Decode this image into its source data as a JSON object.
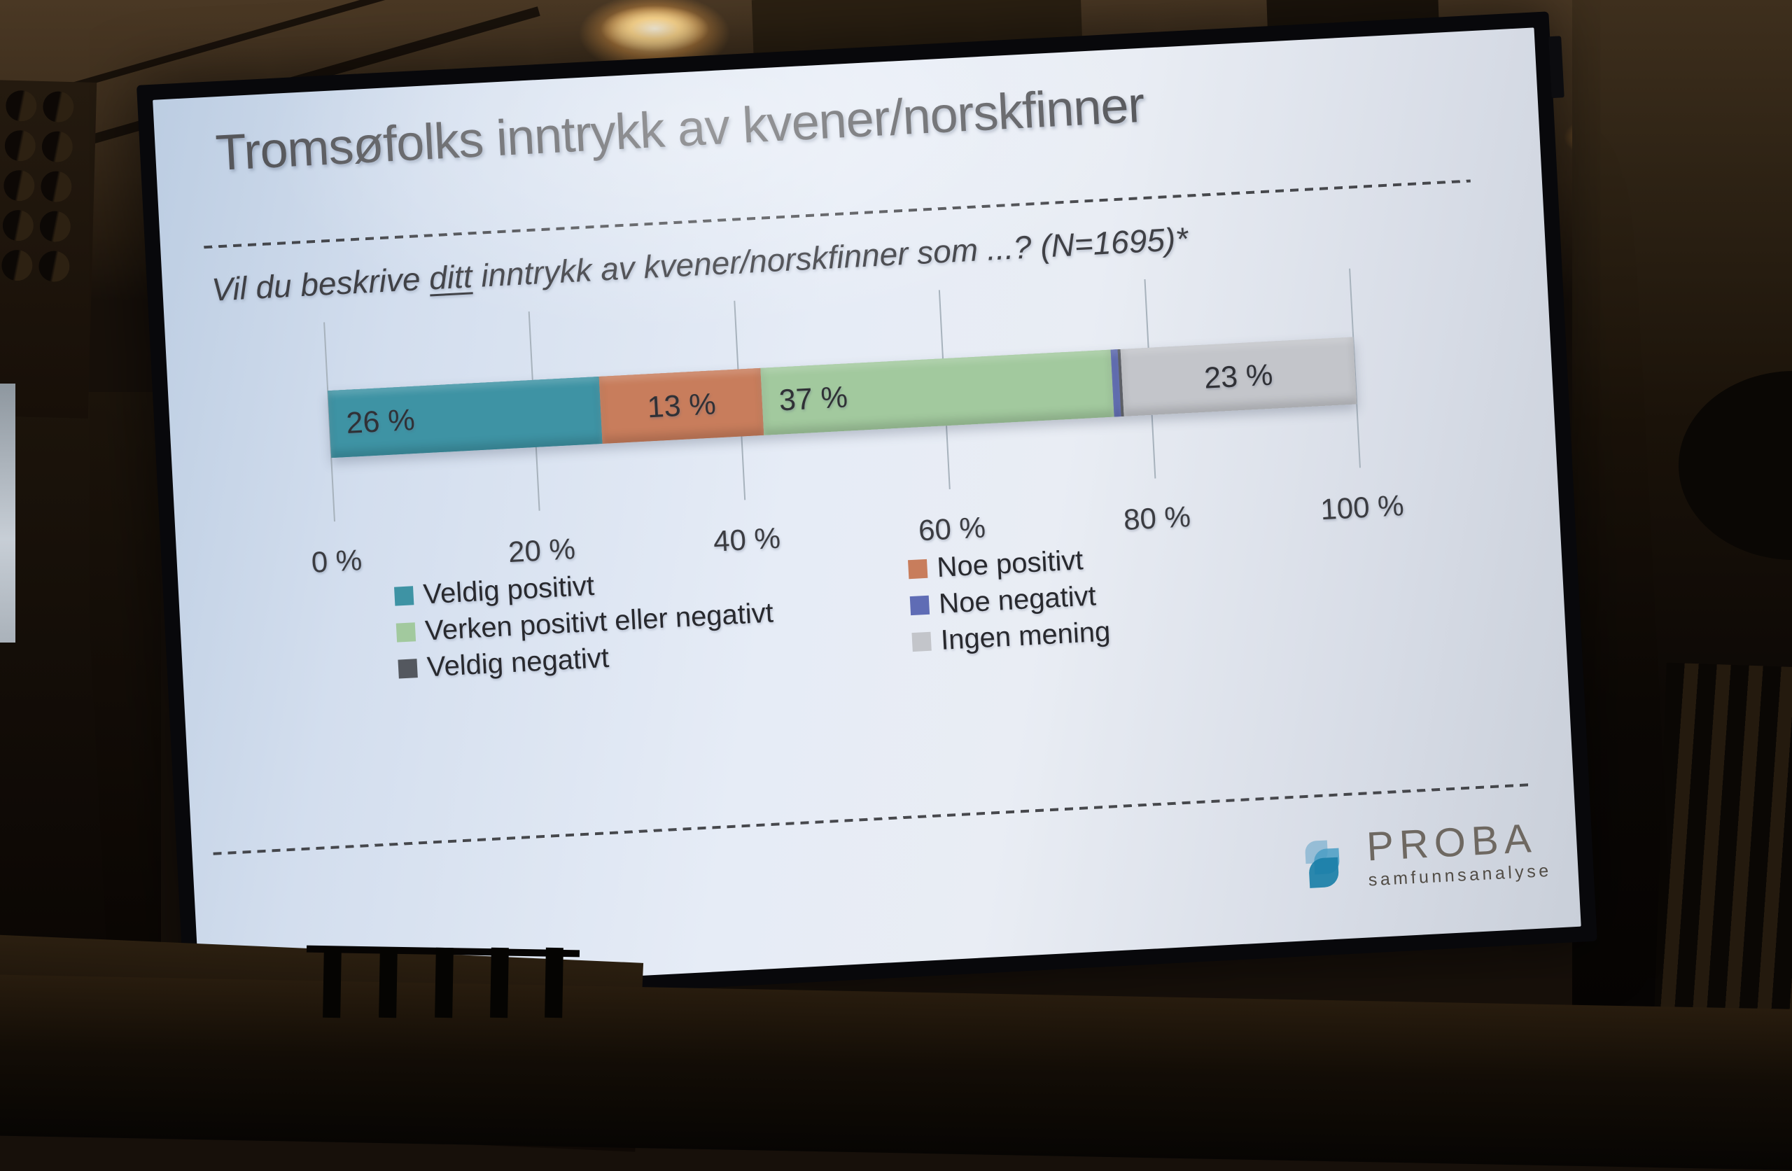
{
  "slide": {
    "title": "Tromsøfolks inntrykk av kvener/norskfinner",
    "question_prefix": "Vil du beskrive ",
    "question_underlined": "ditt",
    "question_suffix": " inntrykk av kvener/norskfinner som ...? (N=1695)*",
    "logo": {
      "brand": "PROBA",
      "tagline": "samfunnsanalyse"
    }
  },
  "chart_data": {
    "type": "bar",
    "orientation": "horizontal",
    "stacked": true,
    "title": "Tromsøfolks inntrykk av kvener/norskfinner",
    "subtitle": "Vil du beskrive ditt inntrykk av kvener/norskfinner som ...? (N=1695)*",
    "sample_size": "N=1695",
    "categories": [
      "Veldig positivt",
      "Noe positivt",
      "Verken positivt eller negativt",
      "Noe negativt",
      "Veldig negativt",
      "Ingen mening"
    ],
    "values": [
      26,
      13,
      37,
      1,
      0,
      23
    ],
    "data_labels": [
      "26 %",
      "13 %",
      "37 %",
      "",
      "",
      "23 %"
    ],
    "colors": [
      "#3e93a4",
      "#c87d5c",
      "#a2c99e",
      "#5f6cb5",
      "#54585f",
      "#c3c5ca"
    ],
    "x_axis": {
      "min": 0,
      "max": 100,
      "tick_labels": [
        "0 %",
        "20 %",
        "40 %",
        "60 %",
        "80 %",
        "100 %"
      ],
      "gridlines": true
    },
    "legend": {
      "position": "bottom",
      "columns": 2
    }
  }
}
